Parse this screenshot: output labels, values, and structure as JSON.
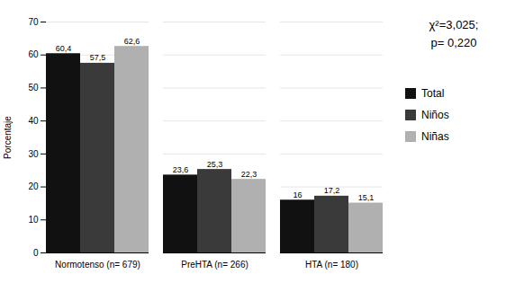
{
  "chart_data": {
    "type": "bar",
    "categories": [
      "Normotenso (n= 679)",
      "PreHTA (n= 266)",
      "HTA (n= 180)"
    ],
    "series": [
      {
        "name": "Total",
        "color": "#111111",
        "values": [
          60.4,
          23.6,
          16
        ],
        "value_labels": [
          "60,4",
          "23,6",
          "16"
        ]
      },
      {
        "name": "Niños",
        "color": "#3a3a3a",
        "values": [
          57.5,
          25.3,
          17.2
        ],
        "value_labels": [
          "57,5",
          "25,3",
          "17,2"
        ]
      },
      {
        "name": "Niñas",
        "color": "#b0b0b0",
        "values": [
          62.6,
          22.3,
          15.1
        ],
        "value_labels": [
          "62,6",
          "22,3",
          "15,1"
        ]
      }
    ],
    "ylabel": "Porcentaje",
    "ylim": [
      0,
      70
    ],
    "yticks": [
      0,
      10,
      20,
      30,
      40,
      50,
      60,
      70
    ],
    "grid": true,
    "legend": "right",
    "data_labels": true,
    "annotations": [
      "χ²=3,025;",
      "p= 0,220"
    ]
  }
}
